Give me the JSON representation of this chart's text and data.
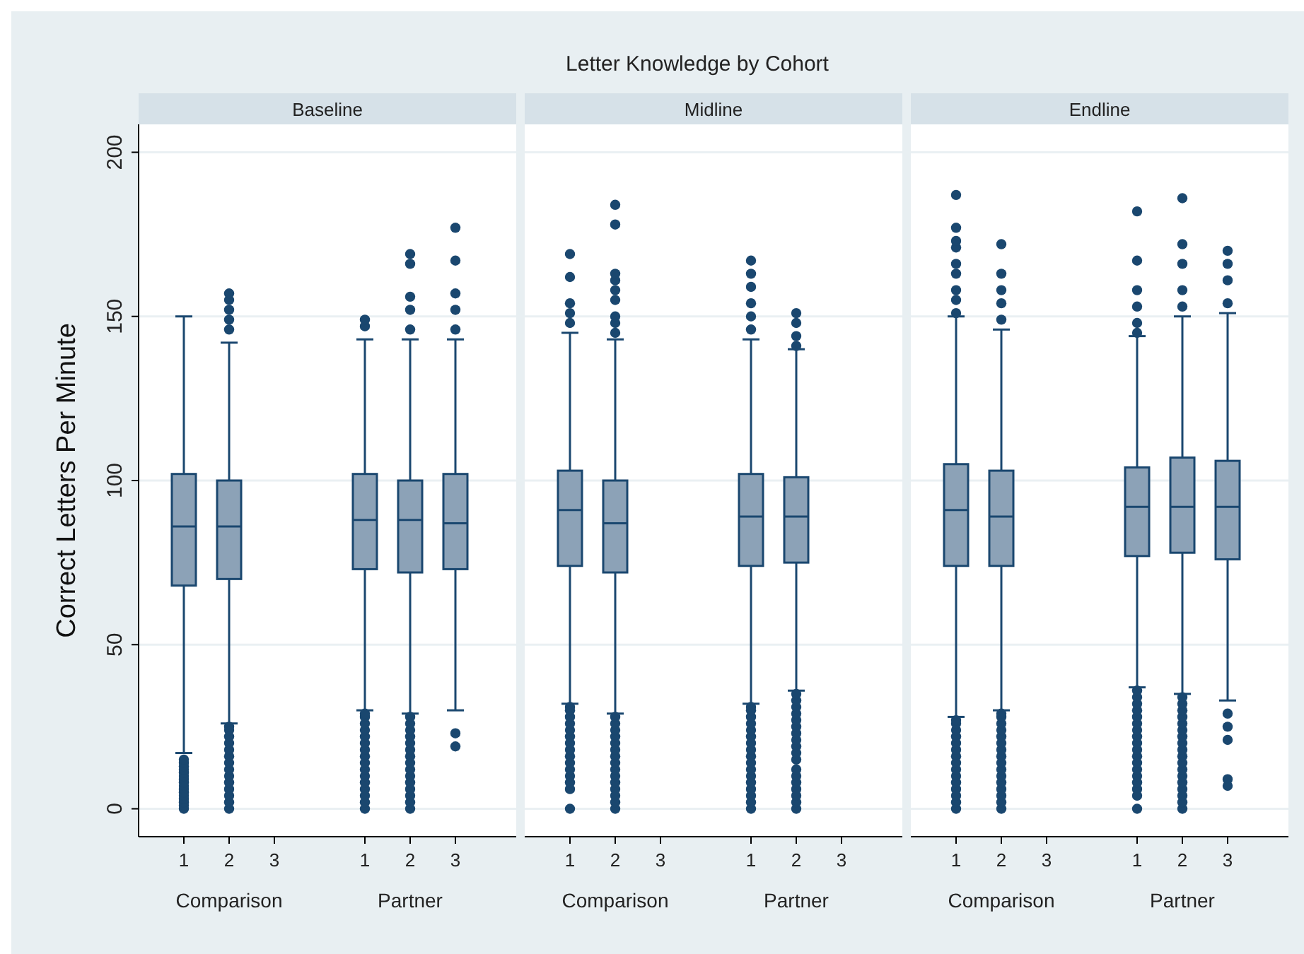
{
  "chart_data": [
    {
      "type": "other",
      "title": "Letter Knowledge by Cohort"
    },
    {
      "type": "box",
      "title": "Baseline",
      "ylabel": "Correct Letters Per Minute",
      "categories": [
        "1",
        "2",
        "3",
        null,
        "1",
        "2",
        "3"
      ],
      "annotations": [
        "Comparison",
        "Partner"
      ],
      "ylim": [
        -8.5,
        208.5
      ],
      "yticks": [
        0,
        50,
        100,
        150,
        200
      ],
      "grid": "y",
      "series": [
        {
          "color": "#8ca2b7",
          "boxes": [
            {
              "low": 17,
              "q1": 68,
              "median": 86,
              "q3": 102,
              "high": 150,
              "outliers": [
                0,
                1,
                2,
                3,
                4,
                5,
                6,
                7,
                8,
                9,
                10,
                11,
                12,
                13,
                14,
                15
              ]
            },
            {
              "low": 26,
              "q1": 70,
              "median": 86,
              "q3": 100,
              "high": 142,
              "outliers": [
                0,
                2,
                4,
                6,
                8,
                10,
                12,
                14,
                16,
                18,
                20,
                22,
                24,
                25,
                146,
                149,
                152,
                155,
                157
              ]
            },
            null,
            null,
            {
              "low": 30,
              "q1": 73,
              "median": 88,
              "q3": 102,
              "high": 143,
              "outliers": [
                0,
                2,
                4,
                6,
                8,
                10,
                12,
                14,
                16,
                18,
                20,
                22,
                24,
                26,
                28,
                29,
                147,
                149
              ]
            },
            {
              "low": 29,
              "q1": 72,
              "median": 88,
              "q3": 100,
              "high": 143,
              "outliers": [
                0,
                2,
                4,
                6,
                8,
                10,
                12,
                14,
                16,
                18,
                20,
                22,
                24,
                26,
                28,
                146,
                152,
                156,
                166,
                169
              ]
            },
            {
              "low": 30,
              "q1": 73,
              "median": 87,
              "q3": 102,
              "high": 143,
              "outliers": [
                19,
                23,
                146,
                152,
                157,
                167,
                177
              ]
            }
          ]
        }
      ]
    },
    {
      "type": "box",
      "title": "Midline",
      "categories": [
        "1",
        "2",
        "3",
        null,
        "1",
        "2",
        "3"
      ],
      "annotations": [
        "Comparison",
        "Partner"
      ],
      "ylim": [
        -8.5,
        208.5
      ],
      "yticks": [
        0,
        50,
        100,
        150,
        200
      ],
      "grid": "y",
      "tick_labels": "x",
      "series": [
        {
          "color": "#8ca2b7",
          "boxes": [
            {
              "low": 32,
              "q1": 74,
              "median": 91,
              "q3": 103,
              "high": 145,
              "outliers": [
                0,
                6,
                8,
                10,
                12,
                14,
                16,
                18,
                20,
                22,
                24,
                26,
                28,
                30,
                31,
                148,
                151,
                154,
                162,
                169
              ]
            },
            {
              "low": 29,
              "q1": 72,
              "median": 87,
              "q3": 100,
              "high": 143,
              "outliers": [
                0,
                2,
                4,
                6,
                8,
                10,
                12,
                14,
                16,
                18,
                20,
                22,
                24,
                26,
                28,
                145,
                148,
                150,
                155,
                158,
                161,
                163,
                178,
                184
              ]
            },
            null,
            null,
            {
              "low": 32,
              "q1": 74,
              "median": 89,
              "q3": 102,
              "high": 143,
              "outliers": [
                0,
                2,
                4,
                6,
                8,
                10,
                12,
                14,
                16,
                18,
                20,
                22,
                24,
                26,
                28,
                30,
                31,
                146,
                150,
                154,
                159,
                163,
                167
              ]
            },
            {
              "low": 36,
              "q1": 75,
              "median": 89,
              "q3": 101,
              "high": 140,
              "outliers": [
                0,
                2,
                4,
                6,
                8,
                10,
                12,
                15,
                17,
                19,
                21,
                23,
                25,
                27,
                29,
                31,
                33,
                35,
                141,
                144,
                148,
                151
              ]
            },
            null
          ]
        }
      ]
    },
    {
      "type": "box",
      "title": "Endline",
      "categories": [
        "1",
        "2",
        "3",
        null,
        "1",
        "2",
        "3"
      ],
      "annotations": [
        "Comparison",
        "Partner"
      ],
      "ylim": [
        -8.5,
        208.5
      ],
      "yticks": [
        0,
        50,
        100,
        150,
        200
      ],
      "grid": "y",
      "tick_labels": "x",
      "series": [
        {
          "color": "#8ca2b7",
          "boxes": [
            {
              "low": 28,
              "q1": 74,
              "median": 91,
              "q3": 105,
              "high": 150,
              "outliers": [
                0,
                2,
                4,
                6,
                8,
                10,
                12,
                14,
                16,
                18,
                20,
                22,
                24,
                26,
                27,
                151,
                155,
                158,
                163,
                166,
                171,
                173,
                177,
                187
              ]
            },
            {
              "low": 30,
              "q1": 74,
              "median": 89,
              "q3": 103,
              "high": 146,
              "outliers": [
                0,
                2,
                4,
                6,
                8,
                10,
                12,
                14,
                16,
                18,
                20,
                22,
                24,
                26,
                28,
                29,
                149,
                154,
                158,
                163,
                172
              ]
            },
            null,
            null,
            {
              "low": 37,
              "q1": 77,
              "median": 92,
              "q3": 104,
              "high": 144,
              "outliers": [
                0,
                4,
                6,
                8,
                10,
                12,
                14,
                16,
                18,
                20,
                22,
                24,
                26,
                28,
                30,
                32,
                34,
                36,
                145,
                148,
                153,
                158,
                167,
                182
              ]
            },
            {
              "low": 35,
              "q1": 78,
              "median": 92,
              "q3": 107,
              "high": 150,
              "outliers": [
                0,
                2,
                4,
                6,
                8,
                10,
                12,
                14,
                16,
                18,
                20,
                22,
                24,
                26,
                28,
                30,
                32,
                34,
                153,
                158,
                166,
                172,
                186
              ]
            },
            {
              "low": 33,
              "q1": 76,
              "median": 92,
              "q3": 106,
              "high": 151,
              "outliers": [
                7,
                9,
                21,
                25,
                29,
                154,
                161,
                166,
                170
              ]
            }
          ]
        }
      ]
    }
  ]
}
